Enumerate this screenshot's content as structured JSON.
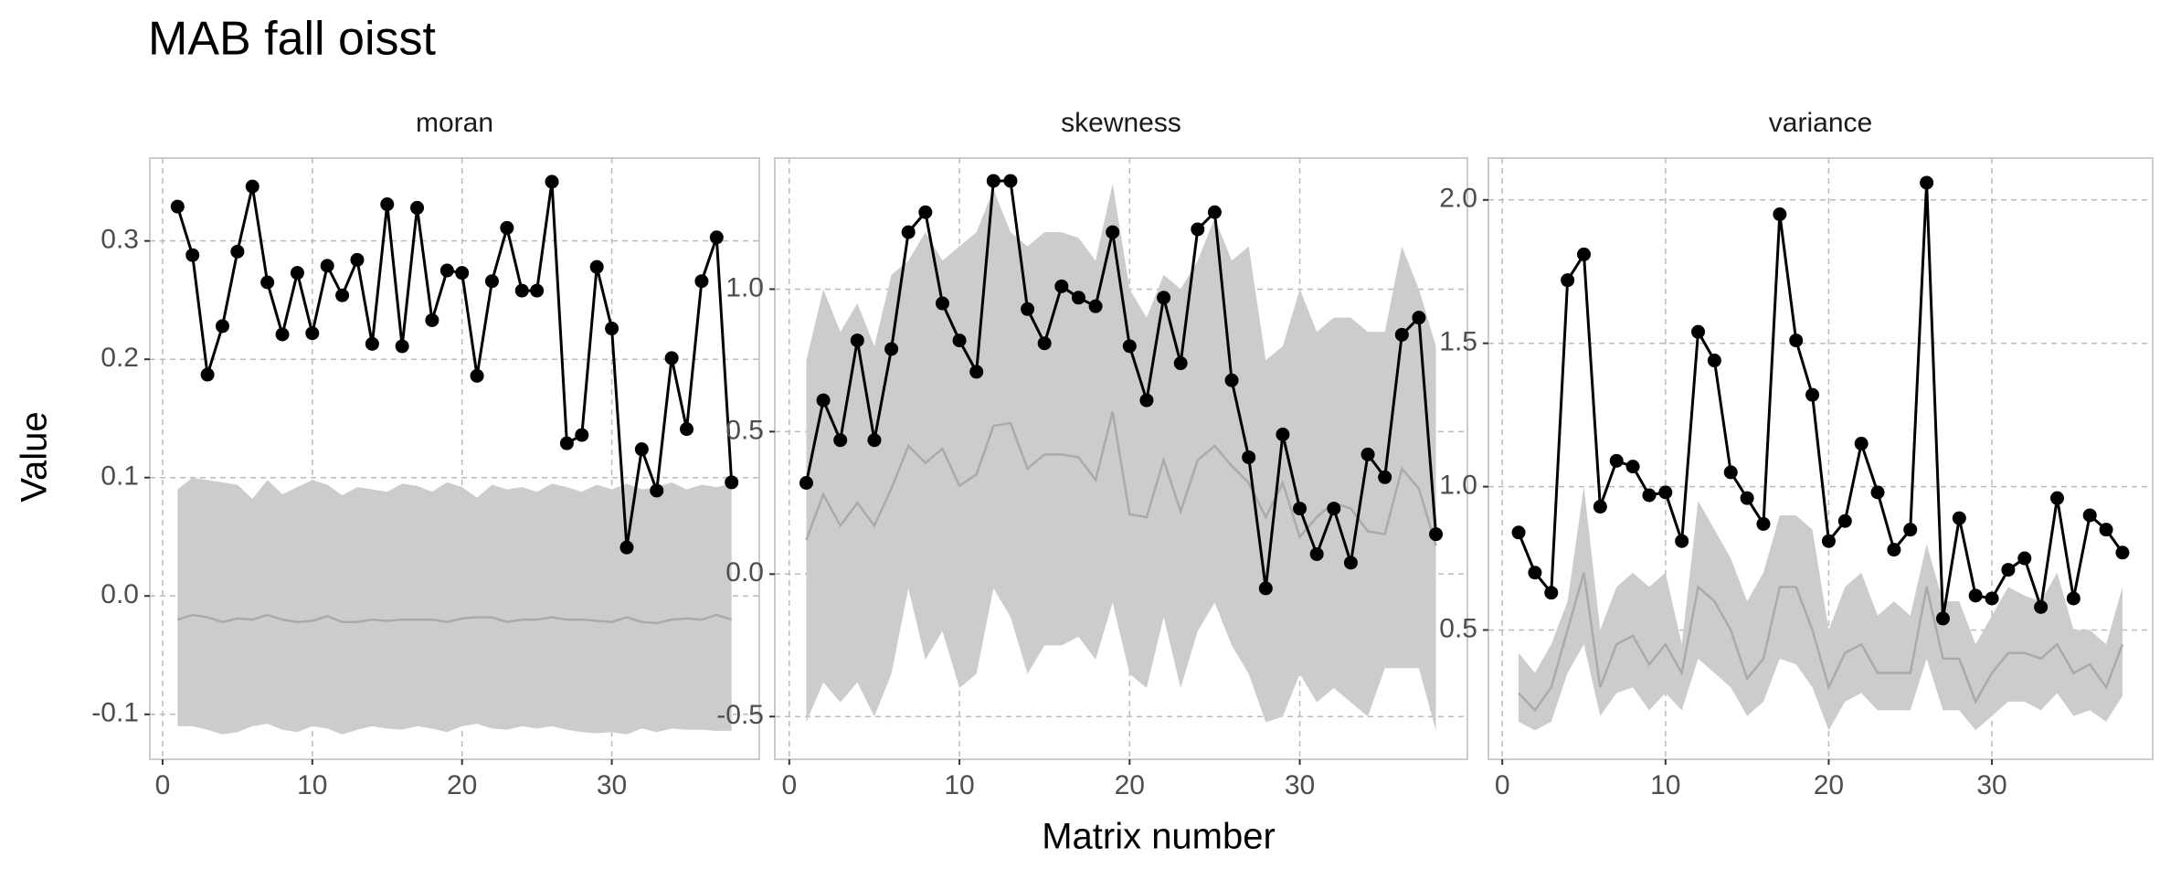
{
  "title": "MAB fall oisst",
  "xlabel": "Matrix number",
  "ylabel": "Value",
  "chart_data": [
    {
      "type": "line",
      "title": "moran",
      "x": [
        1,
        2,
        3,
        4,
        5,
        6,
        7,
        8,
        9,
        10,
        11,
        12,
        13,
        14,
        15,
        16,
        17,
        18,
        19,
        20,
        21,
        22,
        23,
        24,
        25,
        26,
        27,
        28,
        29,
        30,
        31,
        32,
        33,
        34,
        35,
        36,
        37,
        38
      ],
      "xlim": [
        -0.85,
        39.85
      ],
      "xticks": [
        0,
        10,
        20,
        30
      ],
      "ylim": [
        -0.138,
        0.37
      ],
      "yticks": [
        -0.1,
        {
          "value": 0,
          "label": "0.0"
        },
        0.1,
        0.2,
        0.3
      ],
      "grid": true,
      "band": {
        "color": "#cccccc",
        "lower": [
          -0.11,
          -0.11,
          -0.113,
          -0.117,
          -0.115,
          -0.11,
          -0.108,
          -0.113,
          -0.115,
          -0.11,
          -0.112,
          -0.117,
          -0.113,
          -0.11,
          -0.112,
          -0.113,
          -0.11,
          -0.112,
          -0.115,
          -0.11,
          -0.108,
          -0.112,
          -0.113,
          -0.11,
          -0.112,
          -0.11,
          -0.113,
          -0.115,
          -0.116,
          -0.115,
          -0.117,
          -0.112,
          -0.115,
          -0.112,
          -0.113,
          -0.113,
          -0.114,
          -0.114
        ],
        "upper": [
          0.09,
          0.1,
          0.098,
          0.096,
          0.094,
          0.082,
          0.098,
          0.086,
          0.092,
          0.098,
          0.094,
          0.085,
          0.092,
          0.09,
          0.088,
          0.095,
          0.093,
          0.088,
          0.096,
          0.092,
          0.083,
          0.094,
          0.09,
          0.092,
          0.088,
          0.095,
          0.092,
          0.088,
          0.094,
          0.09,
          0.095,
          0.09,
          0.092,
          0.096,
          0.09,
          0.094,
          0.092,
          0.095
        ]
      },
      "series": [
        {
          "color": "#aaaaaa",
          "values": [
            -0.02,
            -0.016,
            -0.018,
            -0.022,
            -0.019,
            -0.02,
            -0.016,
            -0.02,
            -0.022,
            -0.021,
            -0.017,
            -0.022,
            -0.022,
            -0.02,
            -0.021,
            -0.02,
            -0.02,
            -0.02,
            -0.022,
            -0.019,
            -0.018,
            -0.018,
            -0.022,
            -0.02,
            -0.02,
            -0.018,
            -0.02,
            -0.02,
            -0.021,
            -0.022,
            -0.018,
            -0.022,
            -0.023,
            -0.02,
            -0.019,
            -0.02,
            -0.016,
            -0.02
          ]
        },
        {
          "color": "#000000",
          "values": [
            0.329,
            0.288,
            0.187,
            0.228,
            0.291,
            0.346,
            0.265,
            0.221,
            0.273,
            0.222,
            0.279,
            0.254,
            0.284,
            0.213,
            0.331,
            0.211,
            0.328,
            0.233,
            0.275,
            0.273,
            0.186,
            0.266,
            0.311,
            0.258,
            0.258,
            0.35,
            0.129,
            0.136,
            0.278,
            0.226,
            0.041,
            0.124,
            0.089,
            0.201,
            0.141,
            0.266,
            0.303,
            0.096
          ]
        }
      ]
    },
    {
      "type": "line",
      "title": "skewness",
      "x": [
        1,
        2,
        3,
        4,
        5,
        6,
        7,
        8,
        9,
        10,
        11,
        12,
        13,
        14,
        15,
        16,
        17,
        18,
        19,
        20,
        21,
        22,
        23,
        24,
        25,
        26,
        27,
        28,
        29,
        30,
        31,
        32,
        33,
        34,
        35,
        36,
        37,
        38
      ],
      "xlim": [
        -0.85,
        39.85
      ],
      "xticks": [
        0,
        10,
        20,
        30
      ],
      "ylim": [
        -0.65,
        1.46
      ],
      "yticks": [
        -0.5,
        {
          "value": 0,
          "label": "0.0"
        },
        0.5,
        {
          "value": 1,
          "label": "1.0"
        }
      ],
      "grid": true,
      "band": {
        "color": "#cccccc",
        "lower": [
          -0.52,
          -0.38,
          -0.45,
          -0.38,
          -0.5,
          -0.35,
          -0.05,
          -0.3,
          -0.2,
          -0.4,
          -0.35,
          -0.05,
          -0.15,
          -0.35,
          -0.25,
          -0.25,
          -0.22,
          -0.3,
          -0.1,
          -0.35,
          -0.4,
          -0.15,
          -0.4,
          -0.2,
          -0.1,
          -0.25,
          -0.35,
          -0.52,
          -0.5,
          -0.35,
          -0.45,
          -0.4,
          -0.45,
          -0.5,
          -0.33,
          -0.33,
          -0.33,
          -0.55
        ],
        "upper": [
          0.75,
          1.0,
          0.85,
          0.95,
          0.8,
          1.05,
          1.1,
          1.2,
          1.1,
          1.15,
          1.2,
          1.35,
          1.2,
          1.15,
          1.2,
          1.2,
          1.18,
          1.1,
          1.37,
          1.0,
          0.9,
          1.05,
          1.0,
          1.1,
          1.25,
          1.1,
          1.15,
          0.75,
          0.8,
          1.0,
          0.85,
          0.9,
          0.9,
          0.85,
          0.85,
          1.15,
          1.0,
          0.8
        ]
      },
      "series": [
        {
          "color": "#aaaaaa",
          "values": [
            0.12,
            0.28,
            0.17,
            0.25,
            0.17,
            0.3,
            0.45,
            0.39,
            0.44,
            0.31,
            0.35,
            0.52,
            0.53,
            0.37,
            0.42,
            0.42,
            0.41,
            0.33,
            0.57,
            0.21,
            0.2,
            0.4,
            0.22,
            0.4,
            0.45,
            0.38,
            0.32,
            0.2,
            0.32,
            0.13,
            0.2,
            0.25,
            0.23,
            0.15,
            0.14,
            0.37,
            0.3,
            0.1
          ]
        },
        {
          "color": "#000000",
          "values": [
            0.32,
            0.61,
            0.47,
            0.82,
            0.47,
            0.79,
            1.2,
            1.27,
            0.95,
            0.82,
            0.71,
            1.38,
            1.38,
            0.93,
            0.81,
            1.01,
            0.97,
            0.94,
            1.2,
            0.8,
            0.61,
            0.97,
            0.74,
            1.21,
            1.27,
            0.68,
            0.41,
            -0.05,
            0.49,
            0.23,
            0.07,
            0.23,
            0.04,
            0.42,
            0.34,
            0.84,
            0.9,
            0.14
          ]
        }
      ]
    },
    {
      "type": "line",
      "title": "variance",
      "x": [
        1,
        2,
        3,
        4,
        5,
        6,
        7,
        8,
        9,
        10,
        11,
        12,
        13,
        14,
        15,
        16,
        17,
        18,
        19,
        20,
        21,
        22,
        23,
        24,
        25,
        26,
        27,
        28,
        29,
        30,
        31,
        32,
        33,
        34,
        35,
        36,
        37,
        38
      ],
      "xlim": [
        -0.85,
        39.85
      ],
      "xticks": [
        0,
        10,
        20,
        30
      ],
      "ylim": [
        0.049,
        2.146
      ],
      "yticks": [
        0.5,
        {
          "value": 1,
          "label": "1.0"
        },
        1.5,
        {
          "value": 2,
          "label": "2.0"
        }
      ],
      "grid": true,
      "band": {
        "color": "#cccccc",
        "lower": [
          0.18,
          0.15,
          0.18,
          0.35,
          0.45,
          0.2,
          0.28,
          0.3,
          0.22,
          0.28,
          0.22,
          0.4,
          0.35,
          0.3,
          0.2,
          0.25,
          0.4,
          0.38,
          0.3,
          0.15,
          0.25,
          0.28,
          0.22,
          0.22,
          0.22,
          0.4,
          0.22,
          0.22,
          0.15,
          0.2,
          0.25,
          0.25,
          0.22,
          0.28,
          0.2,
          0.22,
          0.18,
          0.27
        ],
        "upper": [
          0.42,
          0.35,
          0.45,
          0.6,
          1.0,
          0.5,
          0.65,
          0.7,
          0.65,
          0.7,
          0.45,
          0.95,
          0.85,
          0.75,
          0.6,
          0.7,
          0.9,
          0.9,
          0.85,
          0.5,
          0.65,
          0.7,
          0.55,
          0.6,
          0.55,
          0.8,
          0.6,
          0.6,
          0.45,
          0.55,
          0.65,
          0.62,
          0.6,
          0.7,
          0.5,
          0.5,
          0.45,
          0.65
        ]
      },
      "series": [
        {
          "color": "#aaaaaa",
          "values": [
            0.28,
            0.22,
            0.3,
            0.5,
            0.7,
            0.3,
            0.45,
            0.48,
            0.38,
            0.45,
            0.35,
            0.65,
            0.6,
            0.5,
            0.33,
            0.4,
            0.65,
            0.65,
            0.5,
            0.3,
            0.42,
            0.45,
            0.35,
            0.35,
            0.35,
            0.65,
            0.4,
            0.4,
            0.25,
            0.35,
            0.42,
            0.42,
            0.4,
            0.45,
            0.35,
            0.38,
            0.3,
            0.45
          ]
        },
        {
          "color": "#000000",
          "values": [
            0.84,
            0.7,
            0.63,
            1.72,
            1.81,
            0.93,
            1.09,
            1.07,
            0.97,
            0.98,
            0.81,
            1.54,
            1.44,
            1.05,
            0.96,
            0.87,
            1.95,
            1.51,
            1.32,
            0.81,
            0.88,
            1.15,
            0.98,
            0.78,
            0.85,
            2.06,
            0.54,
            0.89,
            0.62,
            0.61,
            0.71,
            0.75,
            0.58,
            0.96,
            0.61,
            0.9,
            0.85,
            0.77
          ]
        }
      ]
    }
  ]
}
